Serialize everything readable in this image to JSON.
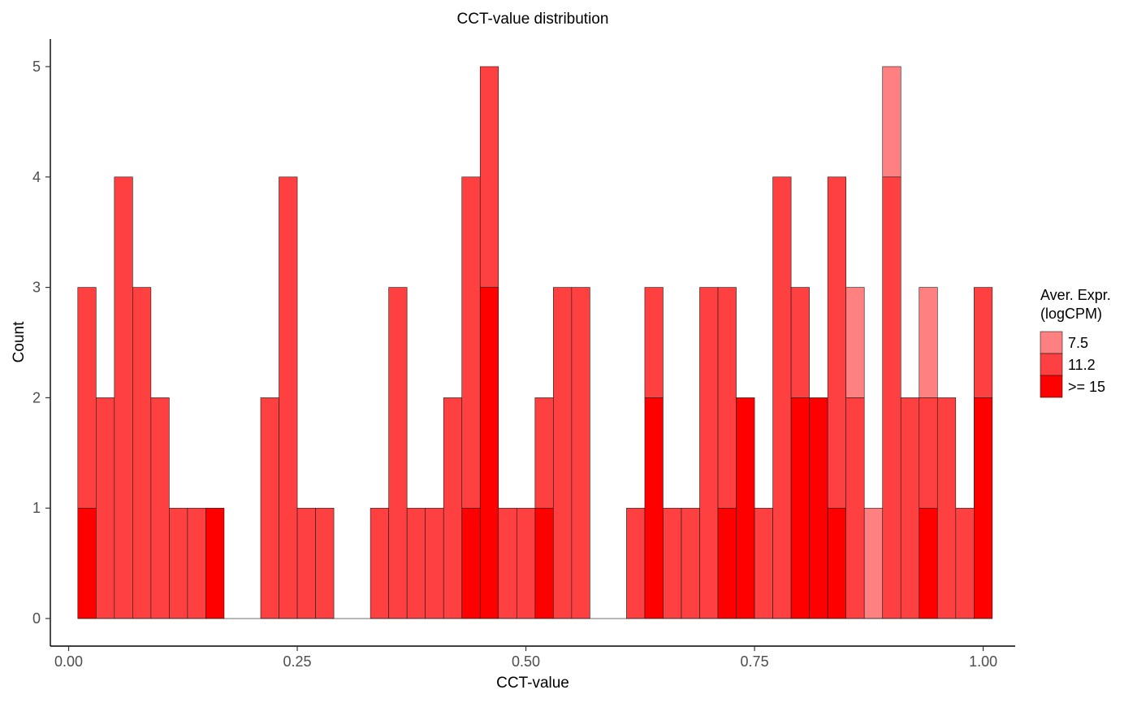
{
  "chart_data": {
    "type": "bar",
    "stacked": true,
    "title": "CCT-value distribution",
    "xlabel": "CCT-value",
    "ylabel": "Count",
    "xlim": [
      -0.02,
      1.035
    ],
    "ylim": [
      -0.25,
      5.25
    ],
    "x_ticks": [
      0,
      0.25,
      0.5,
      0.75,
      1.0
    ],
    "x_tick_labels": [
      "0.00",
      "0.25",
      "0.50",
      "0.75",
      "1.00"
    ],
    "y_ticks": [
      0,
      1,
      2,
      3,
      4,
      5
    ],
    "y_tick_labels": [
      "0",
      "1",
      "2",
      "3",
      "4",
      "5"
    ],
    "bin_width": 0.02,
    "bin_centers": [
      0.02,
      0.04,
      0.06,
      0.08,
      0.1,
      0.12,
      0.14,
      0.16,
      0.18,
      0.2,
      0.22,
      0.24,
      0.26,
      0.28,
      0.3,
      0.32,
      0.34,
      0.36,
      0.38,
      0.4,
      0.42,
      0.44,
      0.46,
      0.48,
      0.5,
      0.52,
      0.54,
      0.56,
      0.58,
      0.6,
      0.62,
      0.64,
      0.66,
      0.68,
      0.7,
      0.72,
      0.74,
      0.76,
      0.78,
      0.8,
      0.82,
      0.84,
      0.86,
      0.88,
      0.9,
      0.92,
      0.94,
      0.96,
      0.98,
      1.0
    ],
    "legend": {
      "title_lines": [
        "Aver. Expr.",
        "(logCPM)"
      ],
      "position": "right"
    },
    "grid": false,
    "series": [
      {
        "name": ">= 15",
        "color": "#ff0000",
        "values": [
          1,
          0,
          0,
          0,
          0,
          0,
          0,
          1,
          0,
          0,
          0,
          0,
          0,
          0,
          0,
          0,
          0,
          0,
          0,
          0,
          0,
          1,
          3,
          0,
          0,
          1,
          0,
          0,
          0,
          0,
          0,
          2,
          0,
          0,
          0,
          1,
          2,
          0,
          0,
          2,
          2,
          1,
          0,
          0,
          0,
          0,
          1,
          0,
          0,
          2
        ]
      },
      {
        "name": "11.2",
        "color": "#ff4040",
        "values": [
          2,
          2,
          4,
          3,
          2,
          1,
          1,
          0,
          0,
          0,
          2,
          4,
          1,
          1,
          0,
          0,
          1,
          3,
          1,
          1,
          2,
          3,
          2,
          1,
          1,
          1,
          3,
          3,
          0,
          0,
          1,
          1,
          1,
          1,
          3,
          2,
          0,
          1,
          4,
          1,
          0,
          3,
          2,
          0,
          4,
          2,
          1,
          2,
          1,
          1
        ]
      },
      {
        "name": "7.5",
        "color": "#ff8080",
        "values": [
          0,
          0,
          0,
          0,
          0,
          0,
          0,
          0,
          0,
          0,
          0,
          0,
          0,
          0,
          0,
          0,
          0,
          0,
          0,
          0,
          0,
          0,
          0,
          0,
          0,
          0,
          0,
          0,
          0,
          0,
          0,
          0,
          0,
          0,
          0,
          0,
          0,
          0,
          0,
          0,
          0,
          0,
          1,
          1,
          1,
          0,
          1,
          0,
          0,
          0
        ]
      }
    ]
  }
}
